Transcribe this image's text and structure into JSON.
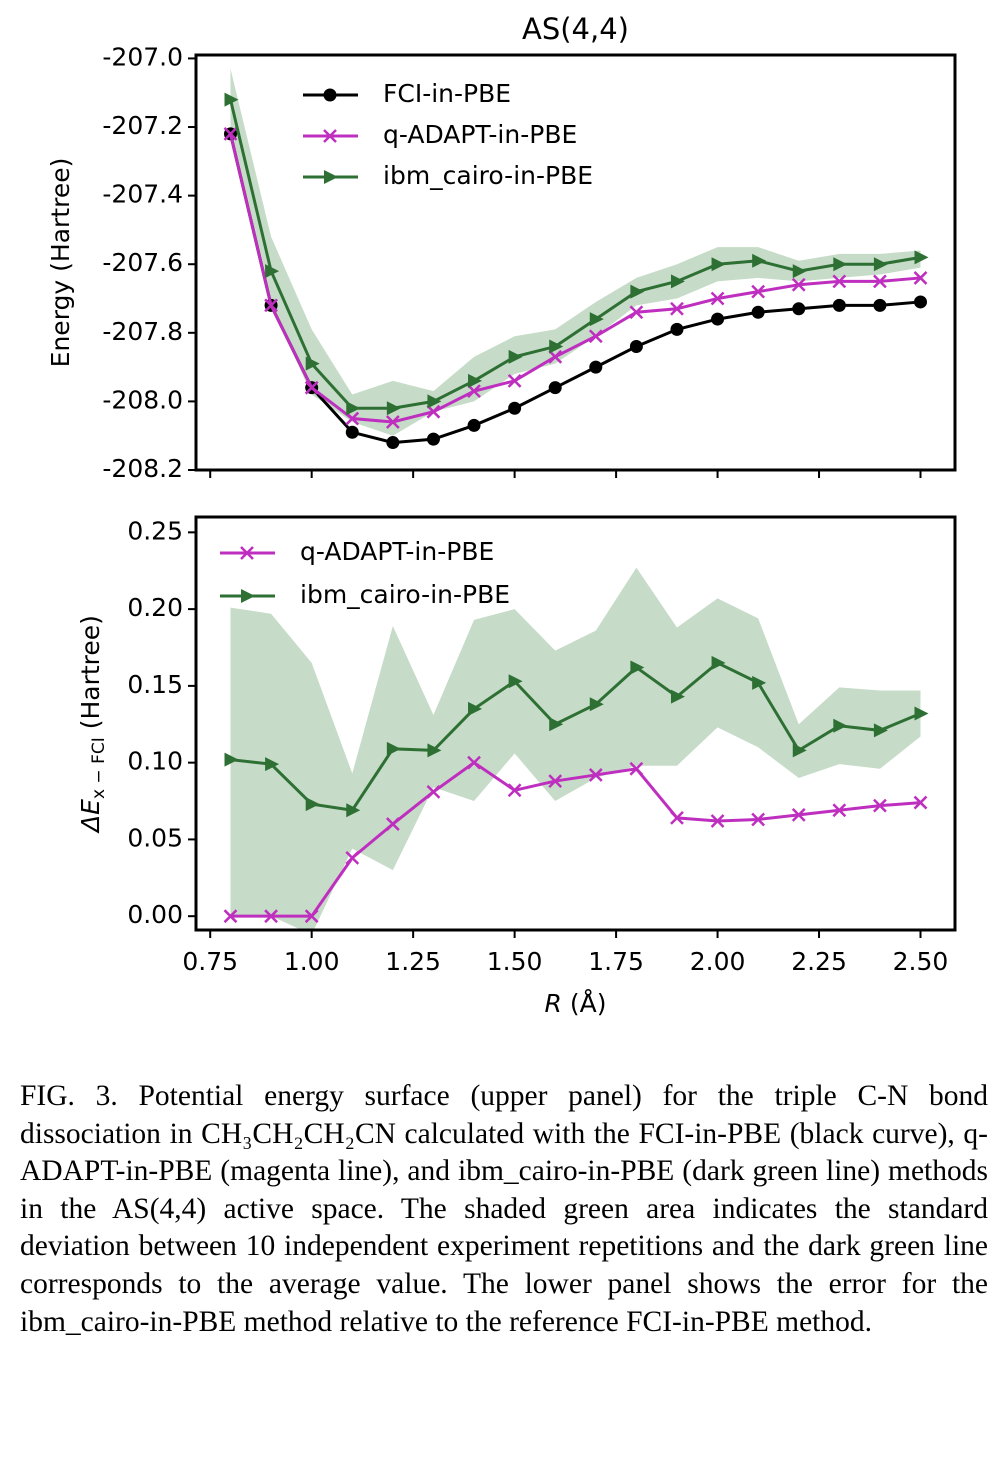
{
  "chart_data": [
    {
      "type": "line",
      "title": "AS(4,4)",
      "ylabel": "Energy (Hartree)",
      "x": [
        0.8,
        0.9,
        1.0,
        1.1,
        1.2,
        1.3,
        1.4,
        1.5,
        1.6,
        1.7,
        1.8,
        1.9,
        2.0,
        2.1,
        2.2,
        2.3,
        2.4,
        2.5
      ],
      "xlim": [
        0.715,
        2.585
      ],
      "ylim": [
        -208.2,
        -206.99
      ],
      "xticks": [
        0.75,
        {
          "value": 1,
          "label": "1.00"
        },
        1.25,
        {
          "value": 1.5,
          "label": "1.50"
        },
        1.75,
        {
          "value": 2,
          "label": "2.00"
        },
        2.25,
        {
          "value": 2.5,
          "label": "2.50"
        }
      ],
      "xtick_labels": false,
      "yticks": [
        {
          "value": -207,
          "label": "-207.0"
        },
        -207.2,
        -207.4,
        -207.6,
        -207.8,
        {
          "value": -208,
          "label": "-208.0"
        },
        -208.2
      ],
      "legend": "upper left",
      "series": [
        {
          "name": "FCI-in-PBE",
          "color": "#000000",
          "marker": "circle",
          "values": [
            -207.22,
            -207.72,
            -207.96,
            -208.09,
            -208.12,
            -208.11,
            -208.07,
            -208.02,
            -207.96,
            -207.9,
            -207.84,
            -207.79,
            -207.76,
            -207.74,
            -207.73,
            -207.72,
            -207.72,
            -207.71
          ]
        },
        {
          "name": "q-ADAPT-in-PBE",
          "color": "#bf2fbf",
          "marker": "x",
          "values": [
            -207.22,
            -207.72,
            -207.96,
            -208.05,
            -208.06,
            -208.03,
            -207.97,
            -207.94,
            -207.87,
            -207.81,
            -207.74,
            -207.73,
            -207.7,
            -207.68,
            -207.66,
            -207.65,
            -207.65,
            -207.64
          ]
        },
        {
          "name": "ibm_cairo-in-PBE",
          "color": "#2e7034",
          "marker": "triangle-right",
          "band_color": "#c6dcc8",
          "values": [
            -207.12,
            -207.62,
            -207.89,
            -208.02,
            -208.02,
            -208.0,
            -207.94,
            -207.87,
            -207.84,
            -207.76,
            -207.68,
            -207.65,
            -207.6,
            -207.59,
            -207.62,
            -207.6,
            -207.6,
            -207.58
          ],
          "upper": [
            -207.03,
            -207.52,
            -207.79,
            -207.98,
            -207.94,
            -207.97,
            -207.87,
            -207.81,
            -207.79,
            -207.71,
            -207.64,
            -207.6,
            -207.55,
            -207.55,
            -207.59,
            -207.57,
            -207.57,
            -207.56
          ],
          "lower": [
            -207.21,
            -207.72,
            -207.98,
            -208.06,
            -208.1,
            -208.03,
            -208.0,
            -207.92,
            -207.89,
            -207.81,
            -207.72,
            -207.7,
            -207.65,
            -207.64,
            -207.65,
            -207.64,
            -207.63,
            -207.61
          ]
        }
      ]
    },
    {
      "type": "line",
      "ylabel": {
        "main": "ΔE",
        "sub": "x − FCI",
        "unit": "(Hartree)"
      },
      "xlabel": {
        "main": "R",
        "unit": "(Å)"
      },
      "x": [
        0.8,
        0.9,
        1.0,
        1.1,
        1.2,
        1.3,
        1.4,
        1.5,
        1.6,
        1.7,
        1.8,
        1.9,
        2.0,
        2.1,
        2.2,
        2.3,
        2.4,
        2.5
      ],
      "xlim": [
        0.715,
        2.585
      ],
      "ylim": [
        -0.009,
        0.26
      ],
      "xticks": [
        0.75,
        {
          "value": 1,
          "label": "1.00"
        },
        1.25,
        {
          "value": 1.5,
          "label": "1.50"
        },
        1.75,
        {
          "value": 2,
          "label": "2.00"
        },
        2.25,
        {
          "value": 2.5,
          "label": "2.50"
        }
      ],
      "yticks": [
        {
          "value": 0,
          "label": "0.00"
        },
        0.05,
        {
          "value": 0.1,
          "label": "0.10"
        },
        0.15,
        {
          "value": 0.2,
          "label": "0.20"
        },
        0.25
      ],
      "legend": "upper left",
      "series": [
        {
          "name": "q-ADAPT-in-PBE",
          "color": "#bf2fbf",
          "marker": "x",
          "values": [
            0.0,
            0.0,
            0.0,
            0.038,
            0.06,
            0.081,
            0.1,
            0.082,
            0.088,
            0.092,
            0.096,
            0.064,
            0.062,
            0.063,
            0.066,
            0.069,
            0.072,
            0.074
          ]
        },
        {
          "name": "ibm_cairo-in-PBE",
          "color": "#2e7034",
          "marker": "triangle-right",
          "band_color": "#c6dcc8",
          "values": [
            0.102,
            0.099,
            0.073,
            0.069,
            0.109,
            0.108,
            0.135,
            0.153,
            0.125,
            0.138,
            0.162,
            0.143,
            0.165,
            0.152,
            0.108,
            0.124,
            0.121,
            0.132
          ],
          "upper": [
            0.201,
            0.197,
            0.165,
            0.093,
            0.189,
            0.131,
            0.193,
            0.2,
            0.173,
            0.186,
            0.227,
            0.188,
            0.207,
            0.194,
            0.125,
            0.149,
            0.147,
            0.147
          ],
          "lower": [
            0.0,
            0.0,
            -0.012,
            0.044,
            0.03,
            0.084,
            0.075,
            0.106,
            0.075,
            0.09,
            0.098,
            0.098,
            0.123,
            0.11,
            0.09,
            0.099,
            0.096,
            0.117
          ]
        }
      ]
    }
  ],
  "caption": {
    "label": "FIG. 3.",
    "text": "Potential energy surface (upper panel) for the triple C-N bond dissociation in CH₃CH₂CH₂CN calculated with the FCI-in-PBE (black curve), q-ADAPT-in-PBE (magenta line), and ibm_cairo-in-PBE (dark green line) methods in the AS(4,4) active space. The shaded green area indicates the standard deviation between 10 independent experiment repetitions and the dark green line corresponds to the average value. The lower panel shows the error for the ibm_cairo-in-PBE method relative to the reference FCI-in-PBE method."
  }
}
